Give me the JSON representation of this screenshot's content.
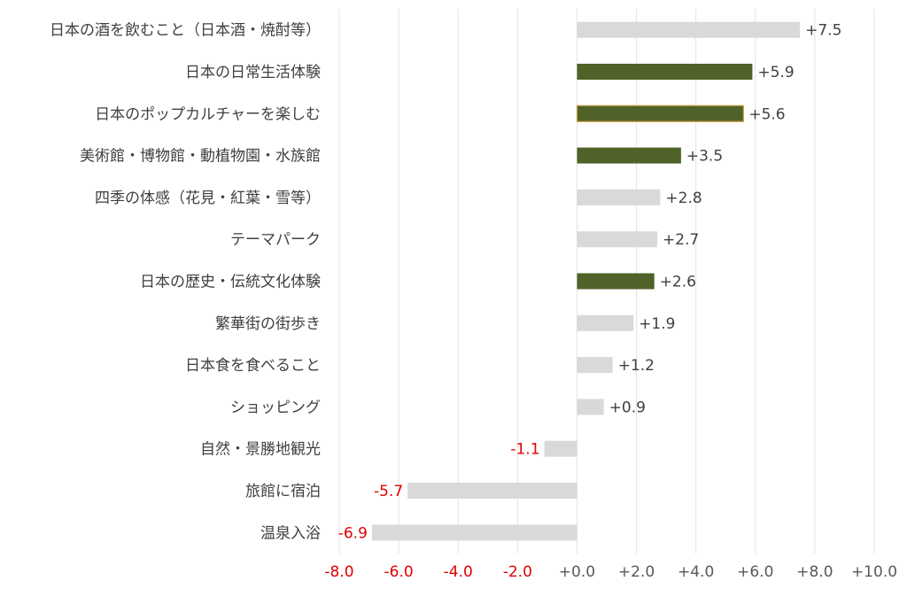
{
  "chart_data": {
    "type": "bar",
    "orientation": "horizontal",
    "title": "",
    "xlabel": "",
    "ylabel": "",
    "xlim": [
      -8.0,
      10.0
    ],
    "grid": true,
    "categories": [
      "日本の酒を飲むこと（日本酒・焼酎等）",
      "日本の日常生活体験",
      "日本のポップカルチャーを楽しむ",
      "美術館・博物館・動植物園・水族館",
      "四季の体感（花見・紅葉・雪等）",
      "テーマパーク",
      "日本の歴史・伝統文化体験",
      "繁華街の街歩き",
      "日本食を食べること",
      "ショッピング",
      "自然・景勝地観光",
      "旅館に宿泊",
      "温泉入浴"
    ],
    "values": [
      7.5,
      5.9,
      5.6,
      3.5,
      2.8,
      2.7,
      2.6,
      1.9,
      1.2,
      0.9,
      -1.1,
      -5.7,
      -6.9
    ],
    "data_labels": [
      "+7.5",
      "+5.9",
      "+5.6",
      "+3.5",
      "+2.8",
      "+2.7",
      "+2.6",
      "+1.9",
      "+1.2",
      "+0.9",
      "-1.1",
      "-5.7",
      "-6.9"
    ],
    "highlighted": [
      false,
      true,
      true,
      true,
      false,
      false,
      true,
      false,
      false,
      false,
      false,
      false,
      false
    ],
    "ticks": [
      -8,
      -6,
      -4,
      -2,
      0,
      2,
      4,
      6,
      8,
      10
    ],
    "tick_labels": [
      "-8.0",
      "-6.0",
      "-4.0",
      "-2.0",
      "+0.0",
      "+2.0",
      "+4.0",
      "+6.0",
      "+8.0",
      "+10.0"
    ],
    "colors": {
      "highlight": "#4f6228",
      "default": "#d9d9d9",
      "negative_text": "#e00000",
      "positive_text": "#404040",
      "grid": "#e3e3e3",
      "highlight_border": "#c9a24a"
    }
  }
}
